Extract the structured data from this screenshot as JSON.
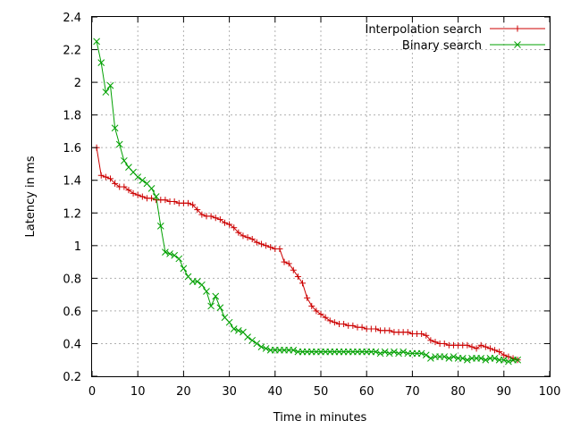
{
  "chart_data": {
    "type": "line",
    "title": "",
    "xlabel": "Time in minutes",
    "ylabel": "Latency in ms",
    "xlim": [
      0,
      100
    ],
    "ylim": [
      0.2,
      2.4
    ],
    "xticks": [
      0,
      10,
      20,
      30,
      40,
      50,
      60,
      70,
      80,
      90,
      100
    ],
    "yticks": [
      0.2,
      0.4,
      0.6,
      0.8,
      1,
      1.2,
      1.4,
      1.6,
      1.8,
      2,
      2.2,
      2.4
    ],
    "grid": true,
    "legend_position": "top-right",
    "series": [
      {
        "name": "Interpolation search",
        "color": "#cc0000",
        "marker": "plus",
        "x": [
          1,
          2,
          3,
          4,
          5,
          6,
          7,
          8,
          9,
          10,
          11,
          12,
          13,
          14,
          15,
          16,
          17,
          18,
          19,
          20,
          21,
          22,
          23,
          24,
          25,
          26,
          27,
          28,
          29,
          30,
          31,
          32,
          33,
          34,
          35,
          36,
          37,
          38,
          39,
          40,
          41,
          42,
          43,
          44,
          45,
          46,
          47,
          48,
          49,
          50,
          51,
          52,
          53,
          54,
          55,
          56,
          57,
          58,
          59,
          60,
          61,
          62,
          63,
          64,
          65,
          66,
          67,
          68,
          69,
          70,
          71,
          72,
          73,
          74,
          75,
          76,
          77,
          78,
          79,
          80,
          81,
          82,
          83,
          84,
          85,
          86,
          87,
          88,
          89,
          90,
          91,
          92,
          93
        ],
        "y": [
          1.6,
          1.43,
          1.42,
          1.41,
          1.38,
          1.36,
          1.36,
          1.34,
          1.32,
          1.31,
          1.3,
          1.29,
          1.29,
          1.28,
          1.28,
          1.28,
          1.27,
          1.27,
          1.26,
          1.26,
          1.26,
          1.25,
          1.22,
          1.19,
          1.18,
          1.18,
          1.17,
          1.16,
          1.14,
          1.13,
          1.11,
          1.08,
          1.06,
          1.05,
          1.04,
          1.02,
          1.01,
          1.0,
          0.99,
          0.98,
          0.98,
          0.9,
          0.89,
          0.85,
          0.81,
          0.77,
          0.68,
          0.63,
          0.6,
          0.58,
          0.56,
          0.54,
          0.53,
          0.52,
          0.52,
          0.51,
          0.51,
          0.5,
          0.5,
          0.49,
          0.49,
          0.49,
          0.48,
          0.48,
          0.48,
          0.47,
          0.47,
          0.47,
          0.47,
          0.46,
          0.46,
          0.46,
          0.45,
          0.42,
          0.41,
          0.4,
          0.4,
          0.39,
          0.39,
          0.39,
          0.39,
          0.39,
          0.38,
          0.37,
          0.39,
          0.38,
          0.37,
          0.36,
          0.35,
          0.33,
          0.32,
          0.31,
          0.3
        ]
      },
      {
        "name": "Binary search",
        "color": "#00a000",
        "marker": "cross",
        "x": [
          1,
          2,
          3,
          4,
          5,
          6,
          7,
          8,
          9,
          10,
          11,
          12,
          13,
          14,
          15,
          16,
          17,
          18,
          19,
          20,
          21,
          22,
          23,
          24,
          25,
          26,
          27,
          28,
          29,
          30,
          31,
          32,
          33,
          34,
          35,
          36,
          37,
          38,
          39,
          40,
          41,
          42,
          43,
          44,
          45,
          46,
          47,
          48,
          49,
          50,
          51,
          52,
          53,
          54,
          55,
          56,
          57,
          58,
          59,
          60,
          61,
          62,
          63,
          64,
          65,
          66,
          67,
          68,
          69,
          70,
          71,
          72,
          73,
          74,
          75,
          76,
          77,
          78,
          79,
          80,
          81,
          82,
          83,
          84,
          85,
          86,
          87,
          88,
          89,
          90,
          91,
          92,
          93
        ],
        "y": [
          2.25,
          2.12,
          1.94,
          1.98,
          1.72,
          1.62,
          1.52,
          1.48,
          1.45,
          1.42,
          1.4,
          1.38,
          1.35,
          1.3,
          1.12,
          0.96,
          0.95,
          0.94,
          0.92,
          0.86,
          0.81,
          0.78,
          0.78,
          0.76,
          0.72,
          0.63,
          0.69,
          0.62,
          0.56,
          0.53,
          0.49,
          0.48,
          0.47,
          0.44,
          0.42,
          0.4,
          0.38,
          0.37,
          0.36,
          0.36,
          0.36,
          0.36,
          0.36,
          0.36,
          0.35,
          0.35,
          0.35,
          0.35,
          0.35,
          0.35,
          0.35,
          0.35,
          0.35,
          0.35,
          0.35,
          0.35,
          0.35,
          0.35,
          0.35,
          0.35,
          0.35,
          0.35,
          0.34,
          0.35,
          0.34,
          0.35,
          0.34,
          0.35,
          0.34,
          0.34,
          0.34,
          0.34,
          0.33,
          0.31,
          0.32,
          0.32,
          0.32,
          0.31,
          0.32,
          0.31,
          0.31,
          0.3,
          0.31,
          0.31,
          0.31,
          0.3,
          0.31,
          0.31,
          0.3,
          0.3,
          0.29,
          0.3,
          0.3
        ]
      }
    ]
  }
}
